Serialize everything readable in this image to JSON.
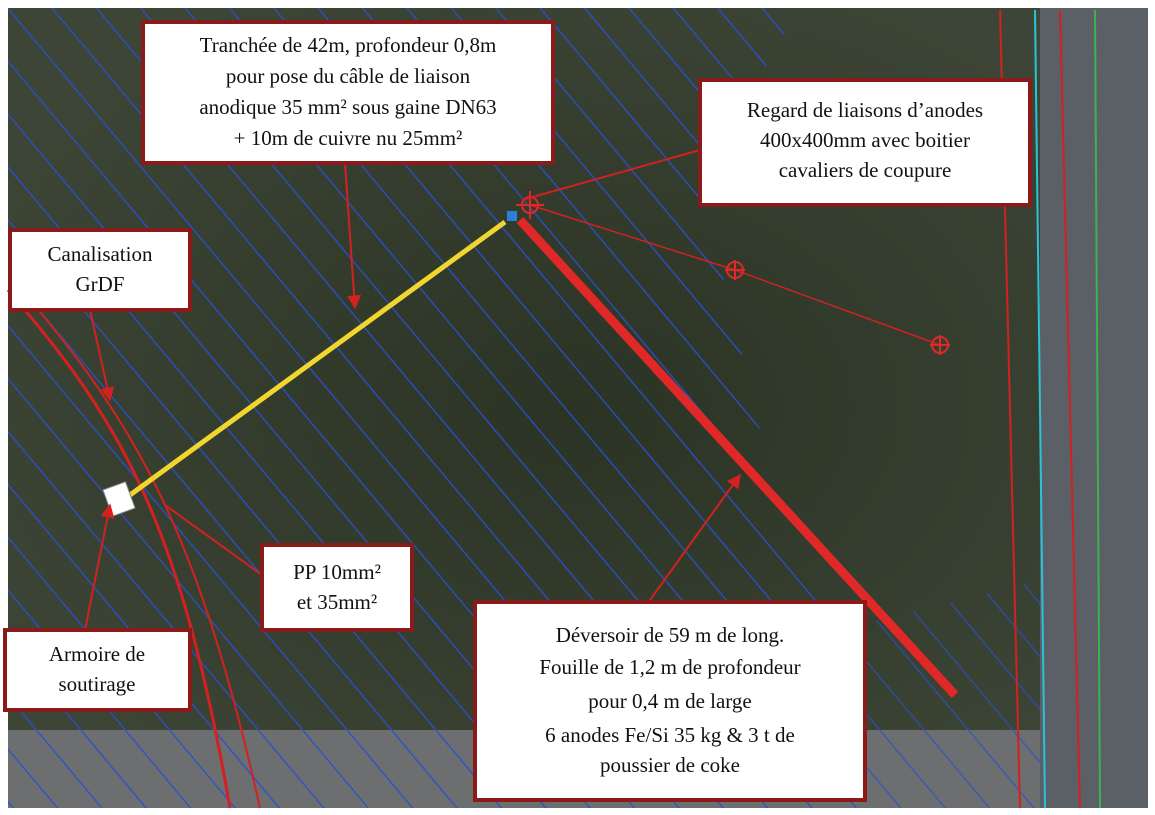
{
  "callouts": [
    {
      "lines": [
        "Tranchée de 42m, profondeur 0,8m",
        "pour pose du câble de liaison",
        "anodique 35 mm² sous gaine DN63",
        "+ 10m de cuivre nu 25mm²"
      ]
    },
    {
      "lines": [
        "Regard de liaisons d’anodes",
        "400x400mm avec boitier",
        "cavaliers de coupure"
      ]
    },
    {
      "lines": [
        "Canalisation",
        "GrDF"
      ]
    },
    {
      "lines": [
        "Armoire de",
        "soutirage"
      ]
    },
    {
      "lines": [
        "PP 10mm²",
        "et 35mm²"
      ]
    },
    {
      "lines": [
        "Déversoir de 59 m de long.",
        "Fouille de 1,2 m de profondeur",
        "pour 0,4 m de large",
        "6 anodes Fe/Si 35 kg & 3 t de",
        "poussier de coke"
      ]
    }
  ]
}
